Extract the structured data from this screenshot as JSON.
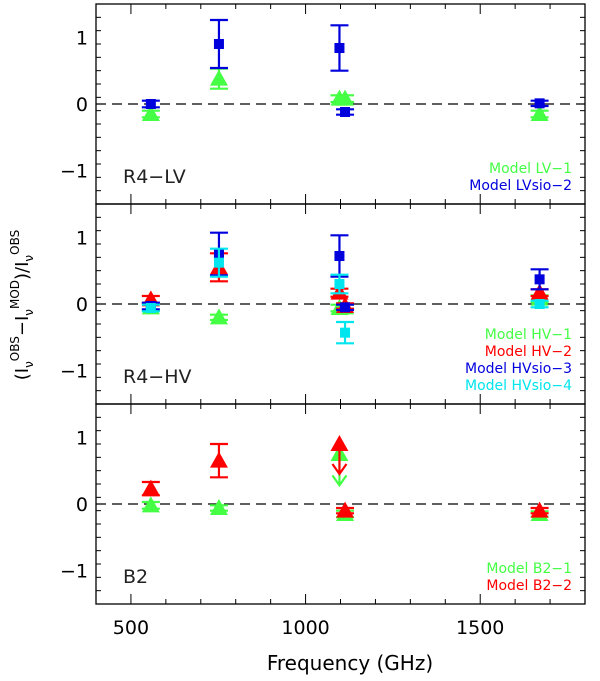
{
  "chart_data": {
    "type": "scatter",
    "xlabel": "Frequency (GHz)",
    "ylabel": "(Iν^OBS − Iν^MOD) / Iν^OBS",
    "xlim": [
      400,
      1800
    ],
    "x_ticks": [
      500,
      1000,
      1500
    ],
    "ylim": [
      -1.5,
      1.5
    ],
    "y_ticks": [
      -1,
      0,
      1
    ],
    "reference_line": 0,
    "colors": {
      "green": "#44ff44",
      "red": "#ff0000",
      "blue": "#0000dd",
      "cyan": "#00e5ee",
      "axis": "#000000"
    },
    "panels": [
      {
        "label": "R4−LV",
        "series": [
          {
            "name": "Model LV−1",
            "color": "green",
            "marker": "triangle",
            "points": [
              {
                "x": 557,
                "y": -0.15,
                "err": 0.05
              },
              {
                "x": 752,
                "y": 0.38,
                "err": 0.15
              },
              {
                "x": 1097,
                "y": 0.08,
                "err": 0.05
              },
              {
                "x": 1113,
                "y": 0.08,
                "err": 0.05
              },
              {
                "x": 1670,
                "y": -0.15,
                "err": 0.05
              }
            ]
          },
          {
            "name": "Model LVsio−2",
            "color": "blue",
            "marker": "square",
            "points": [
              {
                "x": 557,
                "y": 0.0,
                "err": 0.05
              },
              {
                "x": 752,
                "y": 0.9,
                "err": 0.36
              },
              {
                "x": 1097,
                "y": 0.84,
                "err": 0.34
              },
              {
                "x": 1113,
                "y": -0.12,
                "err": 0.04
              },
              {
                "x": 1670,
                "y": 0.01,
                "err": 0.04
              }
            ]
          }
        ]
      },
      {
        "label": "R4−HV",
        "series": [
          {
            "name": "Model HV−1",
            "color": "green",
            "marker": "triangle",
            "points": [
              {
                "x": 557,
                "y": -0.05,
                "err": 0.05
              },
              {
                "x": 752,
                "y": -0.2,
                "err": 0.04
              },
              {
                "x": 1097,
                "y": -0.06,
                "err": 0.05
              },
              {
                "x": 1113,
                "y": -0.05,
                "err": 0.04
              },
              {
                "x": 1670,
                "y": 0.08,
                "err": 0.05
              }
            ]
          },
          {
            "name": "Model HV−2",
            "color": "red",
            "marker": "triangle",
            "points": [
              {
                "x": 557,
                "y": 0.07,
                "err": 0.05
              },
              {
                "x": 752,
                "y": 0.55,
                "err": 0.21
              },
              {
                "x": 1097,
                "y": 0.17,
                "err": 0.06
              },
              {
                "x": 1113,
                "y": -0.03,
                "err": 0.04
              },
              {
                "x": 1670,
                "y": 0.17,
                "err": 0.05
              }
            ]
          },
          {
            "name": "Model HVsio−3",
            "color": "blue",
            "marker": "square",
            "points": [
              {
                "x": 557,
                "y": -0.03,
                "err": 0.05
              },
              {
                "x": 752,
                "y": 0.75,
                "err": 0.32
              },
              {
                "x": 1097,
                "y": 0.72,
                "err": 0.31
              },
              {
                "x": 1113,
                "y": -0.05,
                "err": 0.04
              },
              {
                "x": 1670,
                "y": 0.37,
                "err": 0.15
              }
            ]
          },
          {
            "name": "Model HVsio−4",
            "color": "cyan",
            "marker": "square",
            "points": [
              {
                "x": 557,
                "y": -0.06,
                "err": 0.05
              },
              {
                "x": 752,
                "y": 0.62,
                "err": 0.21
              },
              {
                "x": 1097,
                "y": 0.3,
                "err": 0.14
              },
              {
                "x": 1113,
                "y": -0.43,
                "err": 0.16
              },
              {
                "x": 1670,
                "y": 0.0,
                "err": 0.05
              }
            ]
          }
        ]
      },
      {
        "label": "B2",
        "series": [
          {
            "name": "Model B2−1",
            "color": "green",
            "marker": "triangle",
            "points": [
              {
                "x": 557,
                "y": -0.02,
                "err": 0.05
              },
              {
                "x": 752,
                "y": -0.06,
                "err": 0.04
              },
              {
                "x": 1097,
                "y": 0.75,
                "err": 0,
                "upper_limit": true,
                "arrow_to": 0.28
              },
              {
                "x": 1113,
                "y": -0.15,
                "err": 0.05
              },
              {
                "x": 1670,
                "y": -0.15,
                "err": 0.04
              }
            ]
          },
          {
            "name": "Model B2−2",
            "color": "red",
            "marker": "triangle",
            "points": [
              {
                "x": 557,
                "y": 0.23,
                "err": 0.1
              },
              {
                "x": 752,
                "y": 0.65,
                "err": 0.25
              },
              {
                "x": 1097,
                "y": 0.9,
                "err": 0,
                "upper_limit": true,
                "arrow_to": 0.45
              },
              {
                "x": 1113,
                "y": -0.1,
                "err": 0.04
              },
              {
                "x": 1670,
                "y": -0.1,
                "err": 0.04
              }
            ]
          }
        ]
      }
    ]
  }
}
